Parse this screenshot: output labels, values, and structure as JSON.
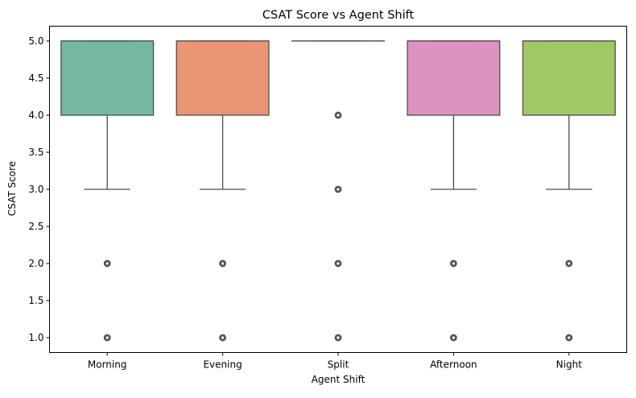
{
  "chart_data": {
    "type": "box",
    "title": "CSAT Score vs Agent Shift",
    "xlabel": "Agent Shift",
    "ylabel": "CSAT Score",
    "ylim": [
      0.8,
      5.2
    ],
    "yticks": [
      1.0,
      1.5,
      2.0,
      2.5,
      3.0,
      3.5,
      4.0,
      4.5,
      5.0
    ],
    "ytick_labels": [
      "1.0",
      "1.5",
      "2.0",
      "2.5",
      "3.0",
      "3.5",
      "4.0",
      "4.5",
      "5.0"
    ],
    "grid": false,
    "categories": [
      "Morning",
      "Evening",
      "Split",
      "Afternoon",
      "Night"
    ],
    "boxes": [
      {
        "category": "Morning",
        "color": "#74b7a2",
        "whisker_low": 3.0,
        "q1": 4.0,
        "median": 5.0,
        "q3": 5.0,
        "whisker_high": 5.0,
        "outliers": [
          2.0,
          1.0
        ]
      },
      {
        "category": "Evening",
        "color": "#e99674",
        "whisker_low": 3.0,
        "q1": 4.0,
        "median": 5.0,
        "q3": 5.0,
        "whisker_high": 5.0,
        "outliers": [
          2.0,
          1.0
        ]
      },
      {
        "category": "Split",
        "color": "#8c9fcb",
        "whisker_low": 5.0,
        "q1": 5.0,
        "median": 5.0,
        "q3": 5.0,
        "whisker_high": 5.0,
        "outliers": [
          4.0,
          3.0,
          2.0,
          1.0
        ]
      },
      {
        "category": "Afternoon",
        "color": "#dc93c0",
        "whisker_low": 3.0,
        "q1": 4.0,
        "median": 5.0,
        "q3": 5.0,
        "whisker_high": 5.0,
        "outliers": [
          2.0,
          1.0
        ]
      },
      {
        "category": "Night",
        "color": "#a2c865",
        "whisker_low": 3.0,
        "q1": 4.0,
        "median": 5.0,
        "q3": 5.0,
        "whisker_high": 5.0,
        "outliers": [
          2.0,
          1.0
        ]
      }
    ],
    "line_color": "#4d4d4d"
  }
}
